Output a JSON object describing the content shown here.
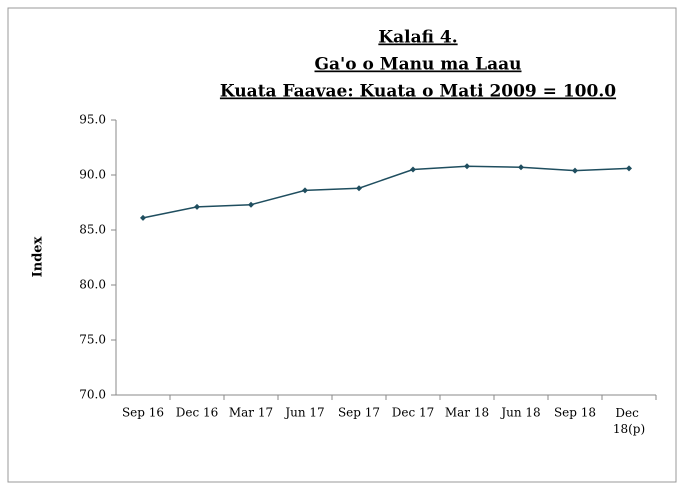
{
  "chart_data": {
    "type": "line",
    "title": [
      "Kalafi 4.",
      "Ga'o o Manu ma Laau",
      "Kuata Faavae: Kuata o Mati 2009  = 100.0"
    ],
    "y_label": "Index",
    "categories": [
      "Sep 16",
      "Dec 16",
      "Mar 17",
      "Jun 17",
      "Sep 17",
      "Dec 17",
      "Mar 18",
      "Jun 18",
      "Sep 18",
      "Dec 18(p)"
    ],
    "series": [
      {
        "name": "Index",
        "color": "#1f4e5f",
        "values": [
          86.1,
          87.1,
          87.3,
          88.6,
          88.8,
          90.5,
          90.8,
          90.7,
          90.4,
          90.6
        ]
      }
    ],
    "ylim": [
      70,
      95
    ],
    "yticks": [
      {
        "value": 70,
        "label": "70.0"
      },
      {
        "value": 75,
        "label": "75.0"
      },
      {
        "value": 80,
        "label": "80.0"
      },
      {
        "value": 85,
        "label": "85.0"
      },
      {
        "value": 90,
        "label": "90.0"
      },
      {
        "value": 95,
        "label": "95.0"
      }
    ],
    "grid": false
  }
}
